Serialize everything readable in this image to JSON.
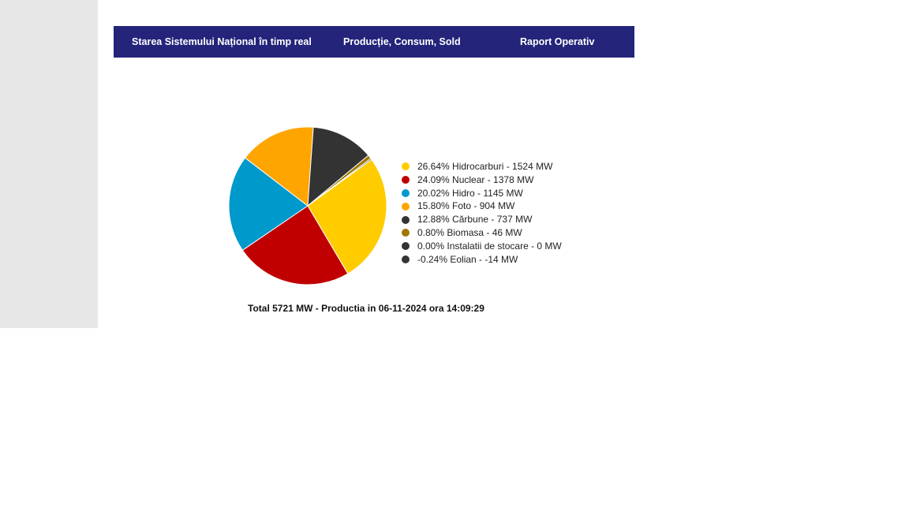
{
  "nav": {
    "tabs": [
      {
        "label": "Starea Sistemului Național în timp real"
      },
      {
        "label": "Producție, Consum, Sold"
      },
      {
        "label": "Raport Operativ"
      }
    ]
  },
  "chart_data": {
    "type": "pie",
    "slices": [
      {
        "label": "26.64% Hidrocarburi - 1524 MW",
        "name": "Hidrocarburi",
        "percent": 26.64,
        "value": 1524,
        "color": "#ffcc00"
      },
      {
        "label": "24.09% Nuclear - 1378 MW",
        "name": "Nuclear",
        "percent": 24.09,
        "value": 1378,
        "color": "#c00000"
      },
      {
        "label": "20.02% Hidro - 1145 MW",
        "name": "Hidro",
        "percent": 20.02,
        "value": 1145,
        "color": "#0099cc"
      },
      {
        "label": "15.80% Foto - 904 MW",
        "name": "Foto",
        "percent": 15.8,
        "value": 904,
        "color": "#ffa500"
      },
      {
        "label": "12.88% Cărbune - 737 MW",
        "name": "Cărbune",
        "percent": 12.88,
        "value": 737,
        "color": "#333333"
      },
      {
        "label": "0.80% Biomasa - 46 MW",
        "name": "Biomasa",
        "percent": 0.8,
        "value": 46,
        "color": "#a07800"
      },
      {
        "label": "0.00% Instalatii de stocare - 0 MW",
        "name": "Instalatii de stocare",
        "percent": 0.0,
        "value": 0,
        "color": "#333333"
      },
      {
        "label": "-0.24% Eolian - -14 MW",
        "name": "Eolian",
        "percent": -0.24,
        "value": -14,
        "color": "#333333"
      }
    ],
    "legend_position": "right",
    "total_label": "Total 5721 MW - Productia in 06-11-2024 ora 14:09:29"
  }
}
